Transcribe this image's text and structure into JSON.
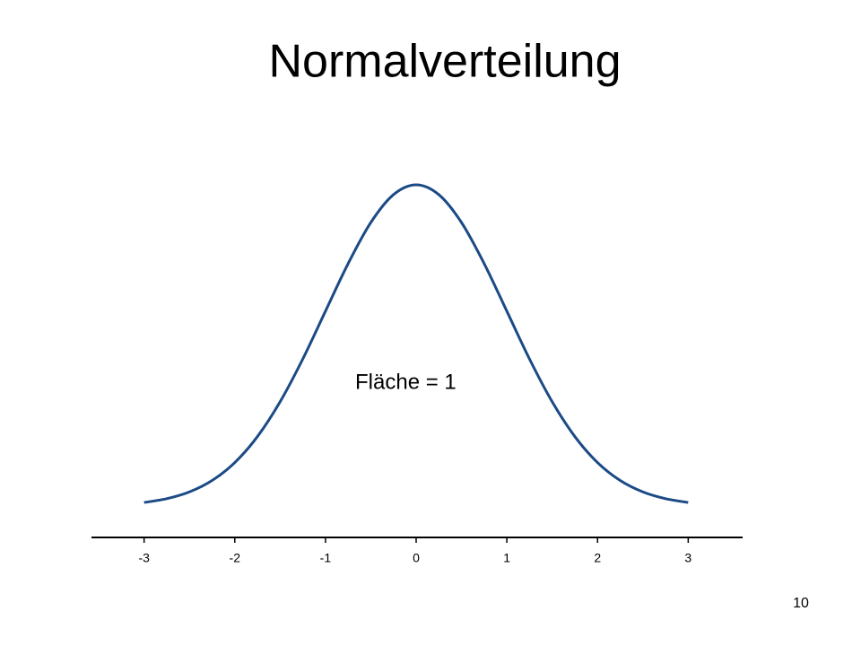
{
  "chart_data": {
    "type": "line",
    "title": "Normalverteilung",
    "annotation": "Fläche = 1",
    "x": [
      -3,
      -2.75,
      -2.5,
      -2.25,
      -2,
      -1.75,
      -1.5,
      -1.25,
      -1,
      -0.75,
      -0.5,
      -0.25,
      0,
      0.25,
      0.5,
      0.75,
      1,
      1.25,
      1.5,
      1.75,
      2,
      2.25,
      2.5,
      2.75,
      3
    ],
    "values": [
      0.0044,
      0.0091,
      0.0175,
      0.0317,
      0.054,
      0.0863,
      0.1295,
      0.1826,
      0.242,
      0.3011,
      0.3521,
      0.3867,
      0.3989,
      0.3867,
      0.3521,
      0.3011,
      0.242,
      0.1826,
      0.1295,
      0.0863,
      0.054,
      0.0317,
      0.0175,
      0.0091,
      0.0044
    ],
    "color": "#1b4a85",
    "xlim": [
      -3.6,
      3.6
    ],
    "xticks": [
      -3,
      -2,
      -1,
      0,
      1,
      2,
      3
    ],
    "ylim": [
      0,
      0.4
    ]
  },
  "slide_number": "10"
}
